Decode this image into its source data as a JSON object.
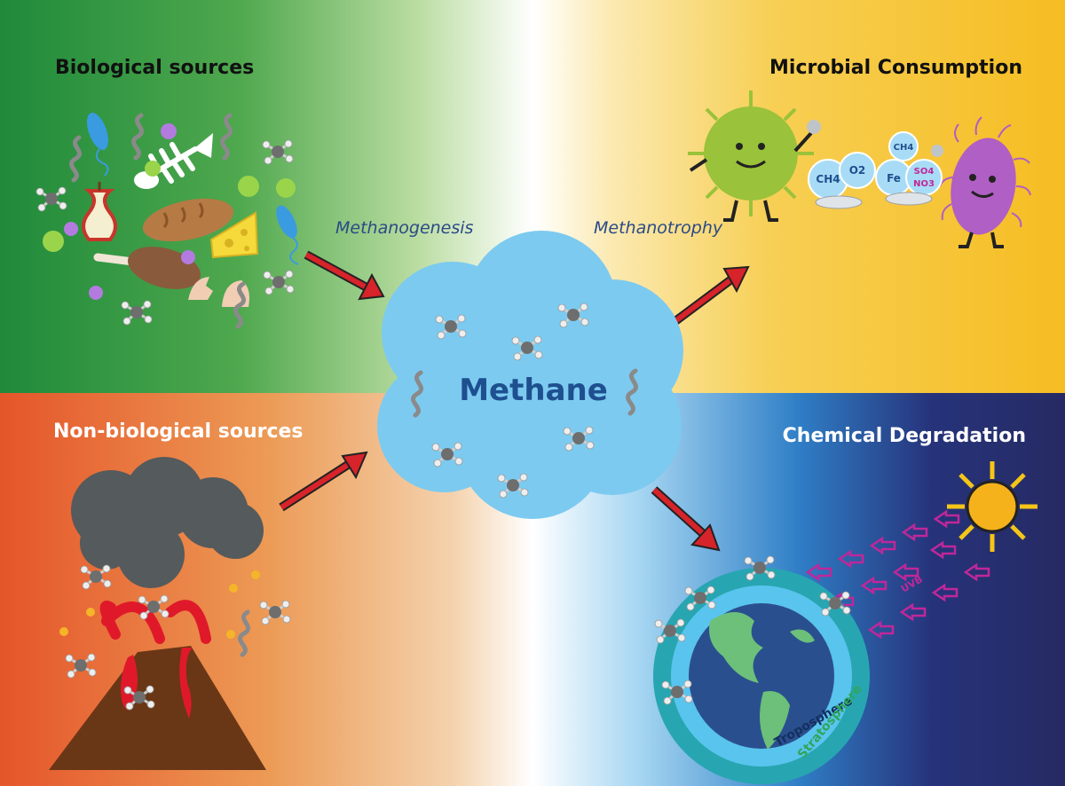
{
  "quadrants": {
    "biological": {
      "title": "Biological sources",
      "color": "#1f8a3a"
    },
    "non_biological": {
      "title": "Non-biological sources",
      "color": "#e5552a"
    },
    "microbial": {
      "title": "Microbial Consumption",
      "color": "#f6c12a"
    },
    "chemical": {
      "title": "Chemical Degradation",
      "color": "#262a63"
    }
  },
  "processes": {
    "methanogenesis": "Methanogenesis",
    "methanotrophy": "Methanotrophy"
  },
  "center": {
    "label": "Methane",
    "color": "#7ccaf0"
  },
  "consumption_molecules": {
    "ch4": "CH4",
    "o2": "O2",
    "fe": "Fe",
    "so4": "SO4",
    "no3": "NO3",
    "ch4_top": "CH4"
  },
  "degradation": {
    "uvb": "UVB",
    "troposphere": "Troposphere",
    "stratosphere": "Stratosphere"
  },
  "icons": [
    "bacterium-icon",
    "fish-skeleton-icon",
    "apple-core-icon",
    "bread-icon",
    "cheese-icon",
    "drumstick-icon",
    "eggshell-icon",
    "virus-icon",
    "volcano-icon",
    "smoke-cloud-icon",
    "sun-icon",
    "earth-icon",
    "methane-molecule-icon",
    "odor-swirl-icon",
    "arrow-icon"
  ]
}
